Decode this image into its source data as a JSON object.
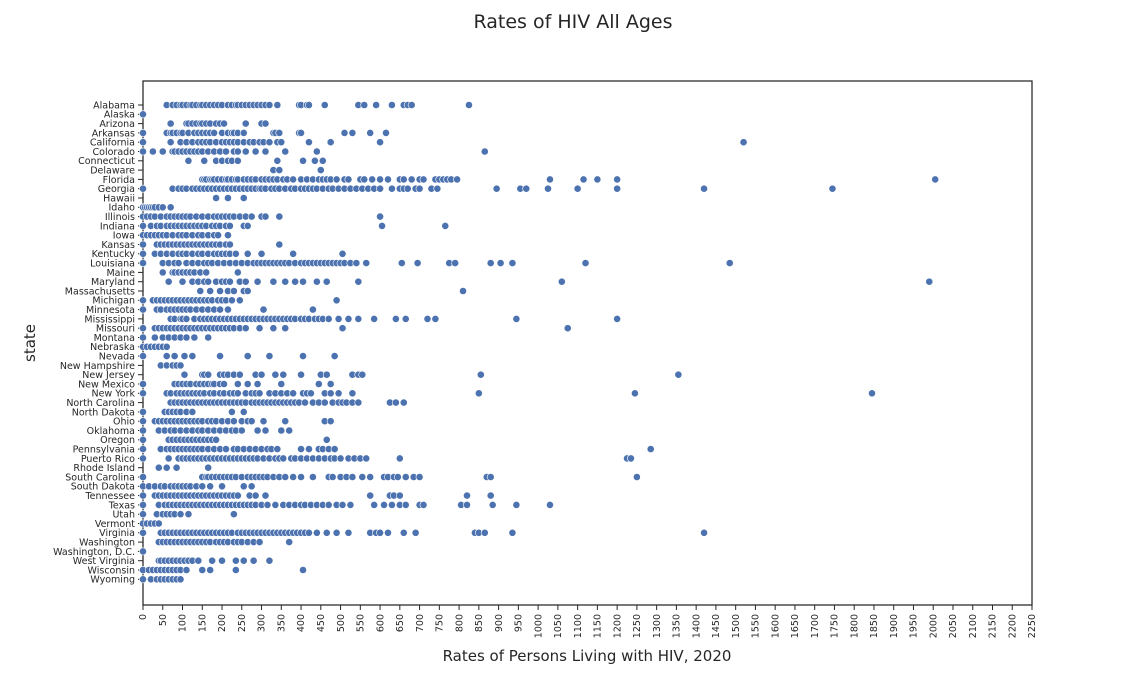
{
  "chart_data": {
    "type": "scatter",
    "title": "Rates of HIV All Ages",
    "xlabel": "Rates of Persons Living with HIV, 2020",
    "ylabel": "state",
    "xlim": [
      0,
      2250
    ],
    "xtick_step": 50,
    "grid": false,
    "legend": "none",
    "marker_color": "#4c72b0",
    "states": [
      "Alabama",
      "Alaska",
      "Arizona",
      "Arkansas",
      "California",
      "Colorado",
      "Connecticut",
      "Delaware",
      "Florida",
      "Georgia",
      "Hawaii",
      "Idaho",
      "Illinois",
      "Indiana",
      "Iowa",
      "Kansas",
      "Kentucky",
      "Louisiana",
      "Maine",
      "Maryland",
      "Massachusetts",
      "Michigan",
      "Minnesota",
      "Mississippi",
      "Missouri",
      "Montana",
      "Nebraska",
      "Nevada",
      "New Hampshire",
      "New Jersey",
      "New Mexico",
      "New York",
      "North Carolina",
      "North Dakota",
      "Ohio",
      "Oklahoma",
      "Oregon",
      "Pennsylvania",
      "Puerto Rico",
      "Rhode Island",
      "South Carolina",
      "South Dakota",
      "Tennessee",
      "Texas",
      "Utah",
      "Vermont",
      "Virginia",
      "Washington",
      "Washington, D.C.",
      "West Virginia",
      "Wisconsin",
      "Wyoming"
    ],
    "points": {
      "Alabama": [
        60,
        75,
        85,
        95,
        100,
        110,
        120,
        125,
        135,
        145,
        150,
        160,
        170,
        180,
        190,
        200,
        215,
        225,
        235,
        240,
        250,
        260,
        270,
        280,
        290,
        300,
        310,
        320,
        340,
        395,
        400,
        415,
        420,
        460,
        545,
        560,
        590,
        630,
        660,
        670,
        680,
        825
      ],
      "Alaska": [
        0
      ],
      "Arizona": [
        70,
        110,
        115,
        125,
        135,
        145,
        150,
        160,
        170,
        185,
        195,
        205,
        260,
        300,
        310
      ],
      "Arkansas": [
        0,
        60,
        70,
        75,
        85,
        95,
        100,
        115,
        130,
        140,
        150,
        160,
        170,
        180,
        200,
        215,
        225,
        230,
        240,
        255,
        330,
        335,
        345,
        395,
        400,
        510,
        530,
        575,
        615
      ],
      "California": [
        0,
        70,
        95,
        110,
        125,
        140,
        150,
        160,
        170,
        185,
        200,
        210,
        220,
        230,
        240,
        255,
        270,
        280,
        295,
        305,
        320,
        340,
        350,
        420,
        475,
        600,
        1520
      ],
      "Colorado": [
        0,
        25,
        50,
        75,
        80,
        90,
        100,
        110,
        120,
        130,
        140,
        150,
        165,
        180,
        195,
        210,
        230,
        240,
        260,
        285,
        310,
        360,
        440,
        865
      ],
      "Connecticut": [
        115,
        155,
        185,
        200,
        215,
        225,
        240,
        340,
        405,
        435,
        455
      ],
      "Delaware": [
        330,
        345,
        450
      ],
      "Florida": [
        150,
        155,
        160,
        170,
        175,
        180,
        190,
        200,
        210,
        215,
        225,
        235,
        240,
        255,
        265,
        275,
        285,
        300,
        310,
        320,
        330,
        340,
        355,
        365,
        380,
        400,
        415,
        430,
        445,
        455,
        465,
        475,
        490,
        510,
        520,
        550,
        560,
        580,
        600,
        620,
        650,
        660,
        680,
        700,
        710,
        740,
        750,
        760,
        770,
        780,
        795,
        1030,
        1115,
        1150,
        1200,
        2005
      ],
      "Georgia": [
        0,
        75,
        90,
        100,
        110,
        125,
        135,
        145,
        155,
        165,
        175,
        185,
        195,
        205,
        215,
        225,
        235,
        245,
        255,
        265,
        275,
        285,
        295,
        300,
        310,
        325,
        335,
        345,
        360,
        375,
        385,
        400,
        410,
        420,
        430,
        440,
        455,
        470,
        480,
        495,
        510,
        525,
        540,
        555,
        570,
        585,
        600,
        630,
        650,
        660,
        670,
        690,
        700,
        730,
        745,
        895,
        955,
        970,
        1025,
        1100,
        1200,
        1420,
        1745
      ],
      "Hawaii": [
        185,
        215,
        255
      ],
      "Idaho": [
        0,
        5,
        10,
        15,
        20,
        25,
        30,
        40,
        50,
        70
      ],
      "Illinois": [
        0,
        10,
        20,
        30,
        45,
        60,
        70,
        80,
        90,
        100,
        110,
        120,
        135,
        150,
        165,
        180,
        190,
        200,
        210,
        220,
        230,
        245,
        260,
        275,
        300,
        310,
        345,
        600
      ],
      "Indiana": [
        0,
        20,
        35,
        45,
        60,
        70,
        80,
        90,
        100,
        110,
        120,
        130,
        140,
        150,
        160,
        175,
        185,
        195,
        210,
        220,
        255,
        265,
        605,
        765
      ],
      "Iowa": [
        0,
        10,
        20,
        30,
        40,
        50,
        60,
        75,
        90,
        100,
        110,
        125,
        140,
        150,
        165,
        180,
        190,
        215
      ],
      "Kansas": [
        0,
        35,
        45,
        55,
        65,
        75,
        85,
        95,
        105,
        115,
        125,
        135,
        145,
        155,
        165,
        175,
        185,
        195,
        210,
        220,
        345
      ],
      "Kentucky": [
        0,
        30,
        45,
        60,
        75,
        90,
        100,
        110,
        125,
        140,
        150,
        165,
        180,
        190,
        200,
        210,
        220,
        235,
        265,
        300,
        380,
        505
      ],
      "Louisiana": [
        0,
        50,
        65,
        80,
        90,
        110,
        125,
        140,
        155,
        165,
        175,
        190,
        205,
        220,
        235,
        250,
        265,
        280,
        290,
        300,
        310,
        320,
        330,
        340,
        350,
        360,
        370,
        385,
        400,
        410,
        420,
        430,
        440,
        450,
        460,
        470,
        480,
        490,
        500,
        510,
        525,
        540,
        565,
        655,
        695,
        775,
        790,
        880,
        905,
        935,
        1120,
        1485
      ],
      "Maine": [
        50,
        75,
        80,
        90,
        100,
        110,
        120,
        130,
        145,
        160,
        240
      ],
      "Maryland": [
        65,
        100,
        125,
        140,
        155,
        165,
        185,
        200,
        210,
        220,
        245,
        260,
        290,
        330,
        360,
        385,
        405,
        440,
        465,
        545,
        1060,
        1990
      ],
      "Massachusetts": [
        145,
        170,
        195,
        215,
        230,
        255,
        265,
        810
      ],
      "Michigan": [
        0,
        25,
        35,
        45,
        55,
        65,
        75,
        85,
        95,
        105,
        115,
        125,
        135,
        145,
        155,
        165,
        175,
        190,
        200,
        210,
        225,
        245,
        490
      ],
      "Minnesota": [
        0,
        35,
        45,
        60,
        70,
        80,
        90,
        100,
        110,
        120,
        135,
        150,
        165,
        180,
        195,
        215,
        305,
        430
      ],
      "Mississippi": [
        70,
        80,
        95,
        100,
        110,
        130,
        145,
        155,
        165,
        175,
        185,
        195,
        205,
        215,
        225,
        235,
        245,
        255,
        265,
        275,
        285,
        295,
        305,
        315,
        325,
        335,
        345,
        355,
        365,
        375,
        385,
        400,
        410,
        420,
        435,
        445,
        455,
        470,
        495,
        520,
        545,
        585,
        640,
        665,
        720,
        740,
        945,
        1200
      ],
      "Missouri": [
        0,
        30,
        40,
        50,
        60,
        70,
        80,
        90,
        100,
        110,
        120,
        130,
        140,
        150,
        160,
        170,
        180,
        190,
        200,
        210,
        220,
        230,
        245,
        260,
        295,
        330,
        360,
        505,
        1075
      ],
      "Montana": [
        0,
        30,
        50,
        65,
        80,
        95,
        110,
        130,
        165
      ],
      "Nebraska": [
        0,
        10,
        20,
        30,
        40,
        50,
        60
      ],
      "Nevada": [
        0,
        60,
        80,
        105,
        125,
        195,
        265,
        320,
        405,
        485
      ],
      "New Hampshire": [
        45,
        60,
        75,
        85,
        95
      ],
      "New Jersey": [
        105,
        150,
        155,
        165,
        195,
        205,
        215,
        230,
        245,
        285,
        300,
        335,
        355,
        400,
        450,
        465,
        530,
        545,
        555,
        855,
        1355
      ],
      "New Mexico": [
        0,
        80,
        90,
        100,
        110,
        120,
        135,
        145,
        155,
        165,
        175,
        180,
        195,
        205,
        240,
        265,
        290,
        350,
        445,
        475
      ],
      "New York": [
        0,
        60,
        70,
        85,
        95,
        105,
        115,
        125,
        135,
        145,
        155,
        170,
        180,
        195,
        205,
        220,
        230,
        240,
        260,
        275,
        285,
        295,
        320,
        335,
        350,
        365,
        380,
        405,
        415,
        425,
        460,
        475,
        495,
        530,
        850,
        1245,
        1845
      ],
      "North Carolina": [
        70,
        80,
        90,
        100,
        110,
        120,
        130,
        140,
        150,
        160,
        170,
        180,
        190,
        200,
        210,
        220,
        230,
        240,
        250,
        260,
        275,
        285,
        295,
        305,
        315,
        325,
        335,
        345,
        355,
        365,
        375,
        385,
        395,
        410,
        430,
        445,
        460,
        480,
        495,
        505,
        515,
        530,
        545,
        625,
        640,
        660
      ],
      "North Dakota": [
        0,
        55,
        65,
        75,
        85,
        95,
        110,
        125,
        225,
        255
      ],
      "Ohio": [
        0,
        30,
        40,
        50,
        60,
        70,
        80,
        90,
        100,
        110,
        120,
        130,
        140,
        150,
        165,
        175,
        185,
        200,
        215,
        230,
        250,
        265,
        275,
        305,
        360,
        460,
        475
      ],
      "Oklahoma": [
        0,
        40,
        55,
        70,
        80,
        95,
        110,
        125,
        140,
        150,
        165,
        180,
        195,
        210,
        225,
        235,
        250,
        290,
        310,
        350,
        370
      ],
      "Oregon": [
        0,
        65,
        75,
        85,
        95,
        105,
        115,
        125,
        135,
        145,
        155,
        165,
        175,
        185,
        465
      ],
      "Pennsylvania": [
        0,
        45,
        60,
        70,
        80,
        90,
        100,
        110,
        120,
        130,
        140,
        150,
        165,
        180,
        195,
        210,
        230,
        240,
        255,
        270,
        285,
        300,
        315,
        325,
        340,
        400,
        420,
        445,
        455,
        470,
        485,
        1285
      ],
      "Puerto Rico": [
        0,
        65,
        90,
        100,
        110,
        120,
        130,
        140,
        150,
        160,
        170,
        180,
        190,
        200,
        210,
        220,
        230,
        240,
        250,
        260,
        270,
        280,
        290,
        305,
        320,
        335,
        345,
        355,
        375,
        385,
        400,
        415,
        430,
        445,
        460,
        475,
        485,
        500,
        520,
        535,
        550,
        565,
        650,
        1225,
        1235
      ],
      "Rhode Island": [
        40,
        60,
        85,
        165
      ],
      "South Carolina": [
        0,
        150,
        160,
        165,
        175,
        185,
        195,
        205,
        215,
        225,
        235,
        250,
        265,
        275,
        285,
        295,
        305,
        315,
        330,
        345,
        360,
        380,
        400,
        430,
        470,
        480,
        500,
        515,
        530,
        555,
        575,
        610,
        620,
        635,
        645,
        665,
        685,
        700,
        870,
        880,
        1250
      ],
      "South Dakota": [
        0,
        15,
        30,
        45,
        55,
        70,
        80,
        90,
        100,
        110,
        120,
        135,
        150,
        170,
        200,
        255,
        275
      ],
      "Tennessee": [
        0,
        30,
        40,
        50,
        60,
        70,
        80,
        90,
        100,
        110,
        120,
        130,
        140,
        150,
        160,
        170,
        180,
        190,
        200,
        210,
        220,
        230,
        240,
        270,
        285,
        310,
        575,
        625,
        635,
        650,
        820,
        880
      ],
      "Texas": [
        0,
        40,
        55,
        65,
        75,
        85,
        95,
        105,
        115,
        125,
        135,
        145,
        155,
        165,
        175,
        185,
        195,
        205,
        215,
        225,
        235,
        245,
        255,
        265,
        275,
        285,
        300,
        315,
        335,
        355,
        370,
        385,
        400,
        410,
        425,
        440,
        455,
        470,
        490,
        505,
        525,
        585,
        610,
        630,
        650,
        665,
        700,
        710,
        805,
        820,
        885,
        945,
        1030
      ],
      "Utah": [
        0,
        35,
        50,
        60,
        70,
        80,
        95,
        115,
        230
      ],
      "Vermont": [
        0,
        10,
        20,
        30,
        40
      ],
      "Virginia": [
        0,
        45,
        55,
        65,
        75,
        85,
        95,
        105,
        115,
        125,
        135,
        145,
        155,
        165,
        175,
        185,
        195,
        205,
        215,
        225,
        240,
        250,
        260,
        270,
        280,
        290,
        300,
        310,
        320,
        330,
        340,
        350,
        360,
        370,
        380,
        390,
        400,
        410,
        420,
        440,
        465,
        490,
        520,
        575,
        590,
        600,
        620,
        660,
        690,
        840,
        850,
        865,
        935,
        1420
      ],
      "Washington": [
        40,
        50,
        60,
        70,
        80,
        90,
        100,
        110,
        120,
        130,
        140,
        150,
        160,
        170,
        185,
        195,
        205,
        215,
        230,
        240,
        250,
        265,
        280,
        295,
        370
      ],
      "Washington, D.C.": [
        0
      ],
      "West Virginia": [
        40,
        45,
        55,
        65,
        75,
        85,
        95,
        105,
        115,
        125,
        140,
        175,
        200,
        235,
        255,
        280,
        320
      ],
      "Wisconsin": [
        0,
        15,
        25,
        35,
        45,
        55,
        65,
        75,
        85,
        95,
        110,
        150,
        170,
        235,
        405
      ],
      "Wyoming": [
        0,
        20,
        35,
        45,
        55,
        65,
        75,
        85,
        95
      ]
    }
  }
}
